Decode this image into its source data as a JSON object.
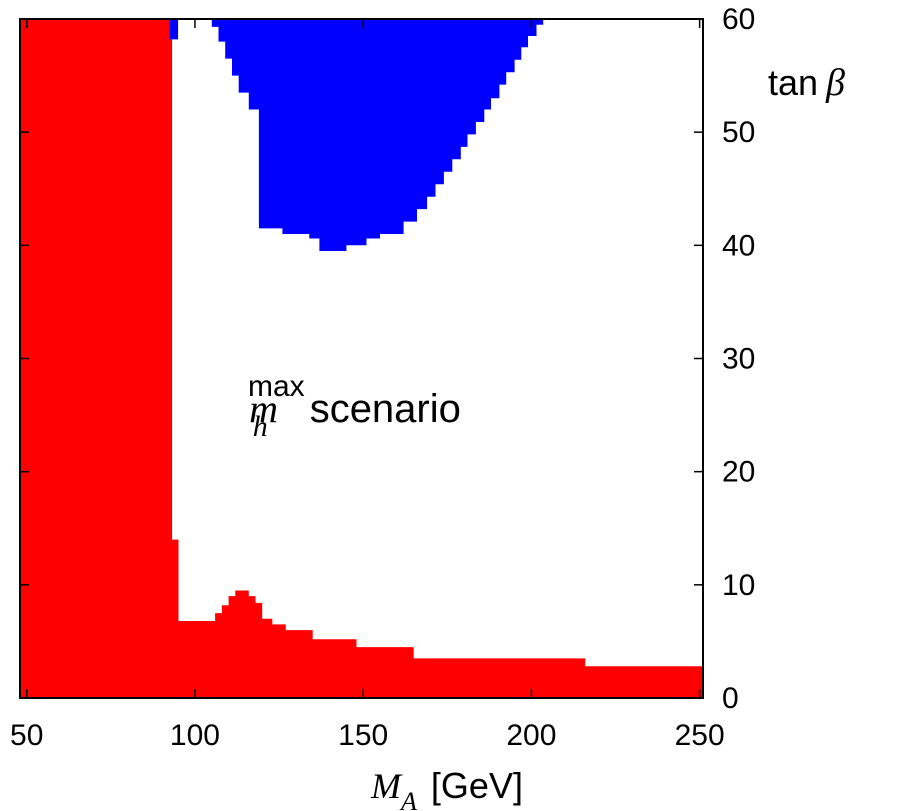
{
  "chart_data": {
    "type": "area",
    "x_axis": {
      "label_symbol": "M",
      "label_subscript": "A",
      "label_unit": "[GeV]",
      "range": [
        48,
        251
      ],
      "ticks": [
        50,
        100,
        150,
        200,
        250
      ],
      "tick_labels": [
        "50",
        "100",
        "150",
        "200",
        "250"
      ]
    },
    "y_axis": {
      "label_func": "tan",
      "label_symbol": "β",
      "range": [
        0,
        60
      ],
      "ticks": [
        0,
        10,
        20,
        30,
        40,
        50,
        60
      ],
      "tick_labels": [
        "0",
        "10",
        "20",
        "30",
        "40",
        "50",
        "60"
      ],
      "position": "right"
    },
    "annotation": {
      "symbol": "m",
      "subscript": "h",
      "superscript": "max",
      "text": "scenario",
      "x": 155,
      "y": 25.5
    },
    "regions": [
      {
        "color": "#ff0000",
        "points": [
          [
            48,
            0
          ],
          [
            48,
            60
          ],
          [
            93.2,
            60
          ],
          [
            93.2,
            14
          ],
          [
            95.1,
            14
          ],
          [
            95.1,
            6.8
          ],
          [
            98,
            6.8
          ],
          [
            103,
            6.8
          ],
          [
            106,
            6.8
          ],
          [
            106,
            7.5
          ],
          [
            108,
            7.5
          ],
          [
            108,
            8.2
          ],
          [
            110,
            8.2
          ],
          [
            110,
            9.0
          ],
          [
            112,
            9.0
          ],
          [
            112,
            9.5
          ],
          [
            116,
            9.5
          ],
          [
            116,
            9.0
          ],
          [
            118,
            9.0
          ],
          [
            118,
            8.4
          ],
          [
            120,
            8.4
          ],
          [
            120,
            7.0
          ],
          [
            123,
            7.0
          ],
          [
            123,
            6.5
          ],
          [
            127,
            6.5
          ],
          [
            127,
            6.0
          ],
          [
            135,
            6.0
          ],
          [
            135,
            5.2
          ],
          [
            148,
            5.2
          ],
          [
            148,
            4.5
          ],
          [
            165,
            4.5
          ],
          [
            165,
            3.5
          ],
          [
            216,
            3.5
          ],
          [
            216,
            2.8
          ],
          [
            251,
            2.8
          ],
          [
            251,
            0
          ]
        ]
      },
      {
        "color": "#0000ff",
        "points": [
          [
            92.5,
            60
          ],
          [
            95,
            60
          ],
          [
            95,
            58.2
          ],
          [
            92.5,
            58.2
          ]
        ]
      },
      {
        "color": "#0000ff",
        "points": [
          [
            105,
            60
          ],
          [
            203.5,
            60
          ],
          [
            203.5,
            59.5
          ],
          [
            201.5,
            59.5
          ],
          [
            201.5,
            58.5
          ],
          [
            199,
            58.5
          ],
          [
            199,
            57.5
          ],
          [
            197,
            57.5
          ],
          [
            197,
            56.4
          ],
          [
            195,
            56.4
          ],
          [
            195,
            55.3
          ],
          [
            192.5,
            55.3
          ],
          [
            192.5,
            54.2
          ],
          [
            190.5,
            54.2
          ],
          [
            190.5,
            53.0
          ],
          [
            188,
            53.0
          ],
          [
            188,
            52.0
          ],
          [
            186,
            52.0
          ],
          [
            186,
            50.9
          ],
          [
            183.5,
            50.9
          ],
          [
            183.5,
            49.8
          ],
          [
            181,
            49.8
          ],
          [
            181,
            48.7
          ],
          [
            179,
            48.7
          ],
          [
            179,
            47.6
          ],
          [
            176.5,
            47.6
          ],
          [
            176.5,
            46.5
          ],
          [
            174,
            46.5
          ],
          [
            174,
            45.4
          ],
          [
            171.5,
            45.4
          ],
          [
            171.5,
            44.3
          ],
          [
            169,
            44.3
          ],
          [
            169,
            43.2
          ],
          [
            166,
            43.2
          ],
          [
            166,
            42.1
          ],
          [
            162,
            42.1
          ],
          [
            162,
            41.0
          ],
          [
            155,
            41.0
          ],
          [
            155,
            40.6
          ],
          [
            151,
            40.6
          ],
          [
            151,
            40.0
          ],
          [
            145,
            40.0
          ],
          [
            145,
            39.5
          ],
          [
            137,
            39.5
          ],
          [
            137,
            40.6
          ],
          [
            134,
            40.6
          ],
          [
            134,
            41.0
          ],
          [
            126,
            41.0
          ],
          [
            126,
            41.5
          ],
          [
            119,
            41.5
          ],
          [
            119,
            52.0
          ],
          [
            116,
            52.0
          ],
          [
            116,
            53.5
          ],
          [
            113,
            53.5
          ],
          [
            113,
            55.0
          ],
          [
            111,
            55.0
          ],
          [
            111,
            56.5
          ],
          [
            109,
            56.5
          ],
          [
            109,
            58.0
          ],
          [
            107,
            58.0
          ],
          [
            107,
            59.3
          ],
          [
            105,
            59.3
          ]
        ]
      }
    ]
  }
}
